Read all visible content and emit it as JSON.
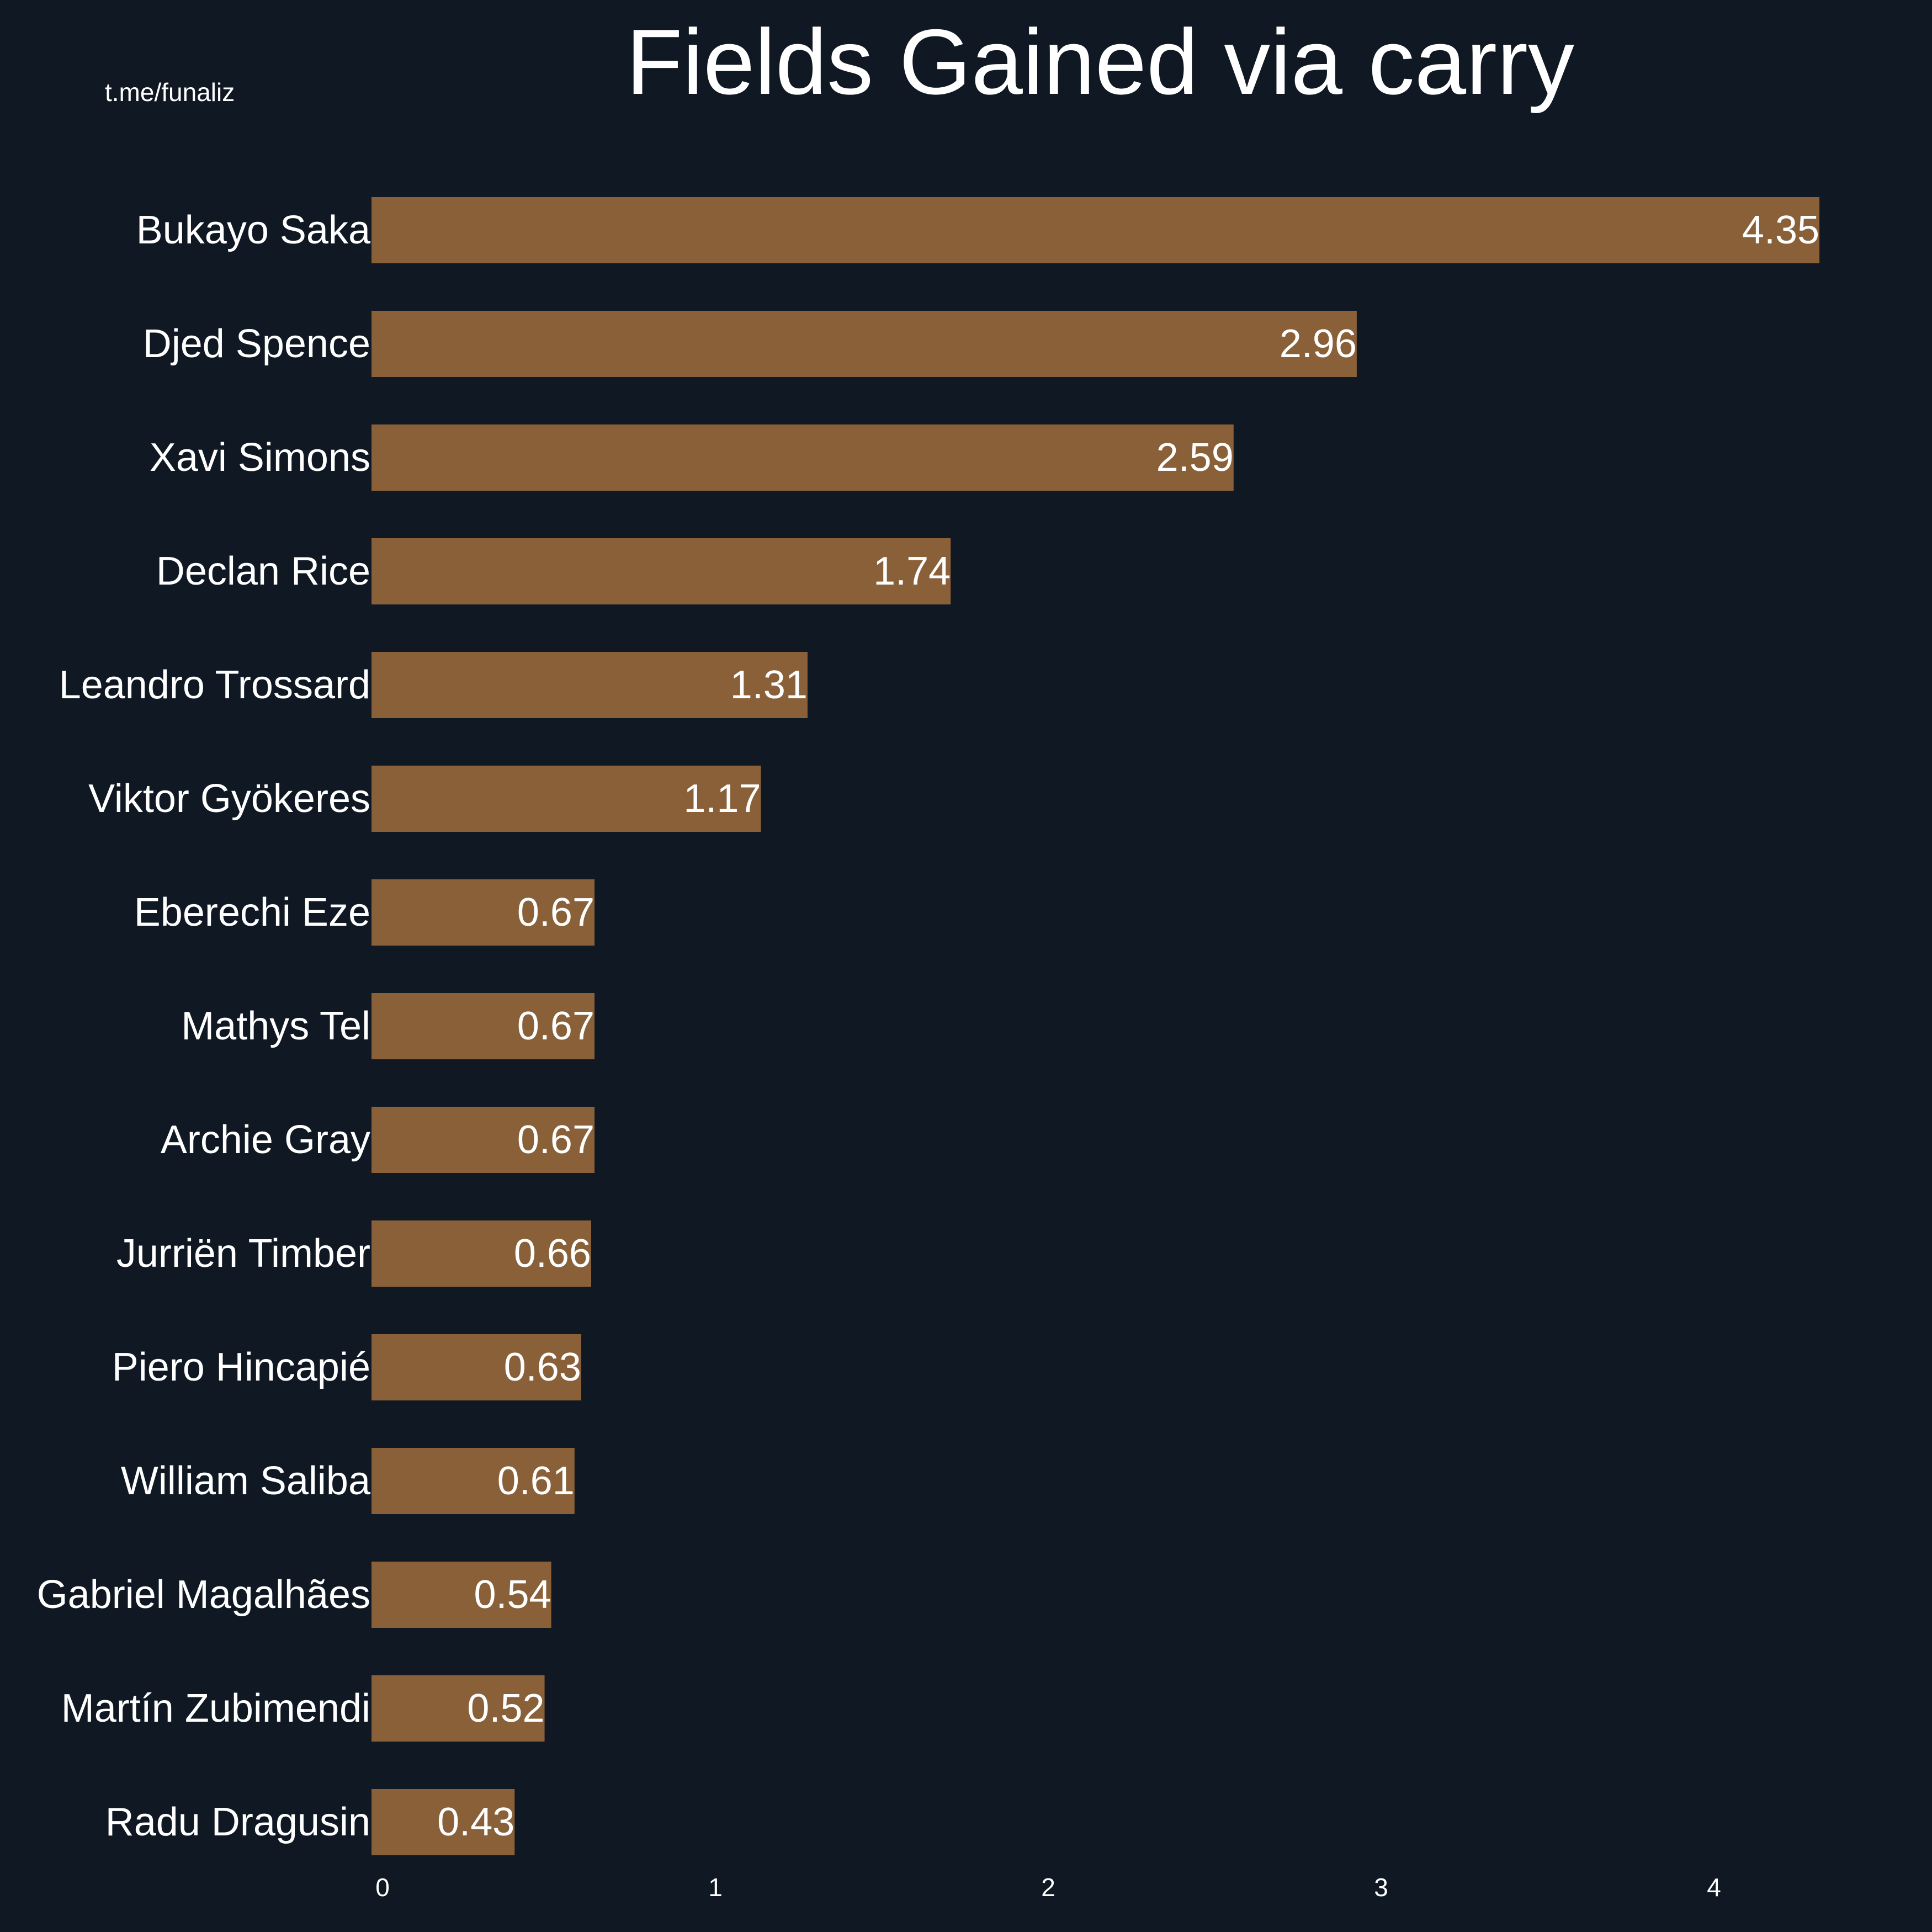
{
  "watermark": "t.me/funaliz",
  "colors": {
    "background": "#101923",
    "bar": "#8a6039",
    "text": "#ffffff"
  },
  "chart_data": {
    "type": "bar",
    "orientation": "horizontal",
    "title": "Fields Gained via carry",
    "xlabel": "",
    "ylabel": "",
    "xlim": [
      0,
      4.5
    ],
    "xticks": [
      0,
      1,
      2,
      3,
      4
    ],
    "grid": false,
    "categories": [
      "Bukayo Saka",
      "Djed Spence",
      "Xavi Simons",
      "Declan Rice",
      "Leandro Trossard",
      "Viktor Gyökeres",
      "Eberechi Eze",
      "Mathys Tel",
      "Archie Gray",
      "Jurriën Timber",
      "Piero Hincapié",
      "William Saliba",
      "Gabriel Magalhães",
      "Martín Zubimendi",
      "Radu Dragusin"
    ],
    "values": [
      4.35,
      2.96,
      2.59,
      1.74,
      1.31,
      1.17,
      0.67,
      0.67,
      0.67,
      0.66,
      0.63,
      0.61,
      0.54,
      0.52,
      0.43
    ],
    "data_labels": [
      "4.35",
      "2.96",
      "2.59",
      "1.74",
      "1.31",
      "1.17",
      "0.67",
      "0.67",
      "0.67",
      "0.66",
      "0.63",
      "0.61",
      "0.54",
      "0.52",
      "0.43"
    ]
  }
}
